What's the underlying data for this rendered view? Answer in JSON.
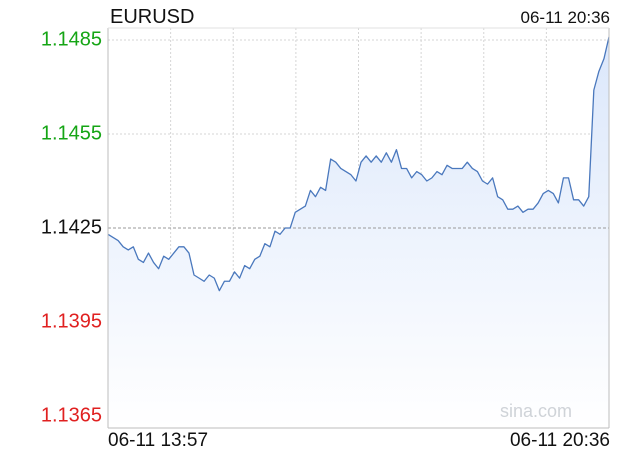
{
  "header": {
    "symbol": "EURUSD",
    "time": "06-11 20:36"
  },
  "watermark": "sina.com",
  "colors": {
    "up": "#15a515",
    "down": "#e02020",
    "neutral": "#111111",
    "line": "#4a78bd",
    "area": "#dbe7fb"
  },
  "chart_data": {
    "type": "area",
    "ylim": [
      1.1365,
      1.1485
    ],
    "ytick_labels": [
      "1.1485",
      "1.1455",
      "1.1425",
      "1.1395",
      "1.1365"
    ],
    "reference": 1.1425,
    "x_start_label": "06-11 13:57",
    "x_end_label": "06-11 20:36",
    "grid": true,
    "series": [
      {
        "values": [
          1.1423,
          1.1422,
          1.1421,
          1.1419,
          1.1418,
          1.1419,
          1.1415,
          1.1414,
          1.1417,
          1.1414,
          1.1412,
          1.1416,
          1.1415,
          1.1417,
          1.1419,
          1.1419,
          1.1417,
          1.141,
          1.1409,
          1.1408,
          1.141,
          1.1409,
          1.1405,
          1.1408,
          1.1408,
          1.1411,
          1.1409,
          1.1413,
          1.1412,
          1.1415,
          1.1416,
          1.142,
          1.1419,
          1.1424,
          1.1423,
          1.1425,
          1.1425,
          1.143,
          1.1431,
          1.1432,
          1.1437,
          1.1435,
          1.1438,
          1.1437,
          1.1447,
          1.1446,
          1.1444,
          1.1443,
          1.1442,
          1.144,
          1.1446,
          1.1448,
          1.1446,
          1.1448,
          1.1446,
          1.1449,
          1.1446,
          1.145,
          1.1444,
          1.1444,
          1.1441,
          1.1443,
          1.1442,
          1.144,
          1.1441,
          1.1443,
          1.1442,
          1.1445,
          1.1444,
          1.1444,
          1.1444,
          1.1446,
          1.1444,
          1.1443,
          1.144,
          1.1439,
          1.1441,
          1.1435,
          1.1434,
          1.1431,
          1.1431,
          1.1432,
          1.143,
          1.1431,
          1.1431,
          1.1433,
          1.1436,
          1.1437,
          1.1436,
          1.1433,
          1.1441,
          1.1441,
          1.1434,
          1.1434,
          1.1432,
          1.1435,
          1.1469,
          1.1475,
          1.1479,
          1.1486
        ]
      }
    ]
  }
}
